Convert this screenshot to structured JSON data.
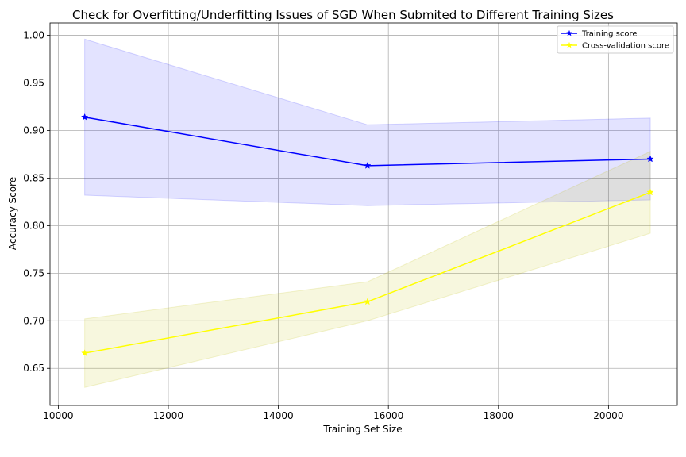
{
  "chart_data": {
    "type": "line",
    "title": "Check for Overfitting/Underfitting Issues of SGD When Submited to Different Training Sizes",
    "xlabel": "Training Set Size",
    "ylabel": "Accuracy Score",
    "xlim": [
      9850,
      21250
    ],
    "ylim": [
      0.611,
      1.013
    ],
    "xticks": [
      10000,
      12000,
      14000,
      16000,
      18000,
      20000
    ],
    "yticks": [
      0.65,
      0.7,
      0.75,
      0.8,
      0.85,
      0.9,
      0.95,
      1.0
    ],
    "xtick_labels": [
      "10000",
      "12000",
      "14000",
      "16000",
      "18000",
      "20000"
    ],
    "ytick_labels": [
      "0.65",
      "0.70",
      "0.75",
      "0.80",
      "0.85",
      "0.90",
      "0.95",
      "1.00"
    ],
    "grid": true,
    "legend_position": "top-right",
    "x": [
      10480,
      15620,
      20760
    ],
    "series": [
      {
        "name": "Training score",
        "color": "#0000ff",
        "marker": "star",
        "values": [
          0.914,
          0.863,
          0.87
        ],
        "band_upper": [
          0.996,
          0.906,
          0.913
        ],
        "band_lower": [
          0.832,
          0.821,
          0.827
        ],
        "band_color": "#0000ff",
        "band_opacity": 0.11
      },
      {
        "name": "Cross-validation score",
        "color": "#ffff00",
        "marker": "star",
        "values": [
          0.666,
          0.72,
          0.835
        ],
        "band_upper": [
          0.702,
          0.741,
          0.878
        ],
        "band_lower": [
          0.63,
          0.7,
          0.792
        ],
        "band_color": "#bfbf00",
        "band_opacity": 0.13
      }
    ]
  }
}
